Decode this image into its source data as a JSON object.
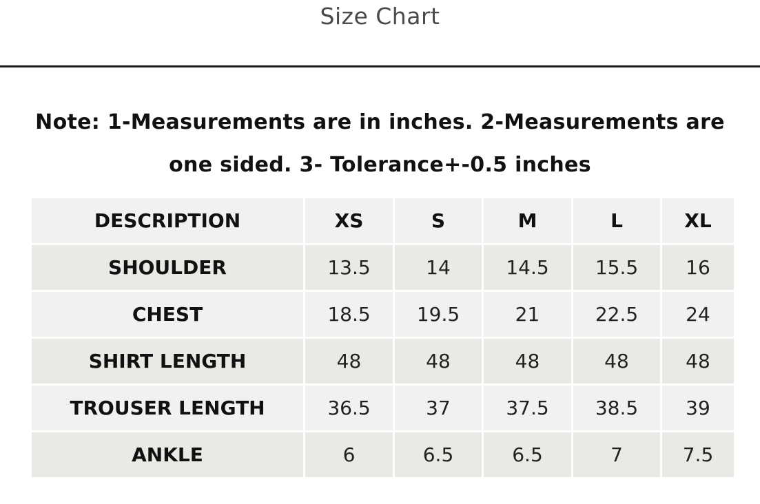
{
  "title": "Size Chart",
  "note_line1": "Note: 1-Measurements are in inches. 2-Measurements are",
  "note_line2": "one sided. 3- Tolerance+-0.5 inches",
  "table": {
    "headers": [
      "DESCRIPTION",
      "XS",
      "S",
      "M",
      "L",
      "XL"
    ],
    "rows": [
      {
        "label": "SHOULDER",
        "values": [
          "13.5",
          "14",
          "14.5",
          "15.5",
          "16"
        ]
      },
      {
        "label": "CHEST",
        "values": [
          "18.5",
          "19.5",
          "21",
          "22.5",
          "24"
        ]
      },
      {
        "label": "SHIRT LENGTH",
        "values": [
          "48",
          "48",
          "48",
          "48",
          "48"
        ]
      },
      {
        "label": "TROUSER LENGTH",
        "values": [
          "36.5",
          "37",
          "37.5",
          "38.5",
          "39"
        ]
      },
      {
        "label": "ANKLE",
        "values": [
          "6",
          "6.5",
          "6.5",
          "7",
          "7.5"
        ]
      }
    ]
  },
  "colors": {
    "header_bg": "#f1f1f1",
    "row_odd_bg": "#e9e9e6",
    "row_even_bg": "#f1f1f1",
    "divider": "#1a1a1a"
  }
}
